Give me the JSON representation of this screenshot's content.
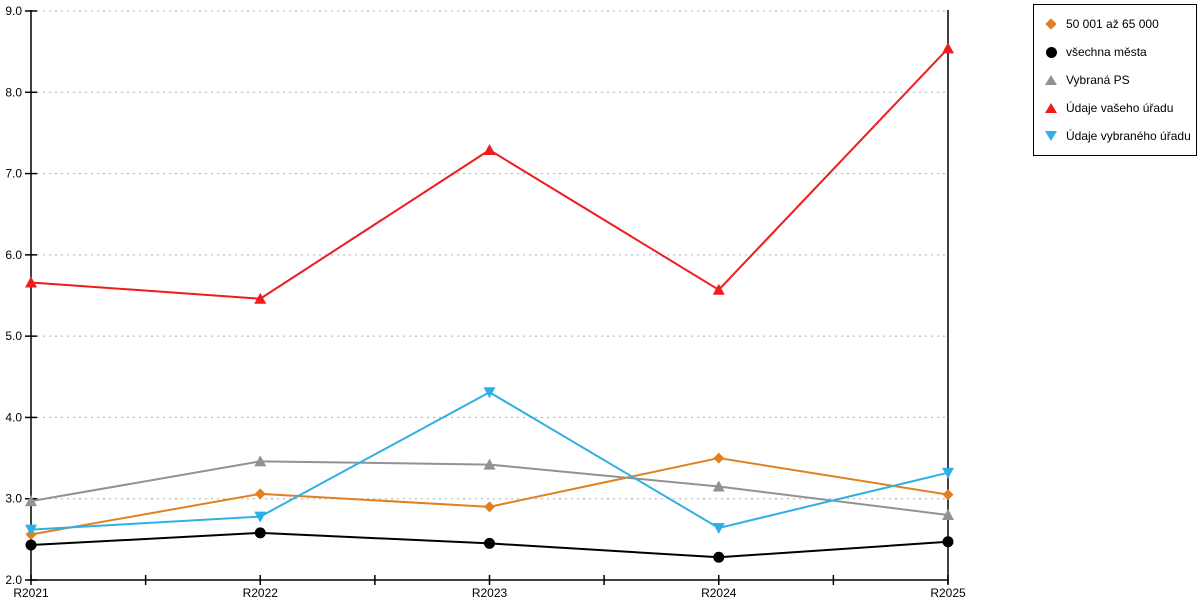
{
  "chart_data": {
    "type": "line",
    "title": "",
    "xlabel": "",
    "ylabel": "",
    "categories": [
      "R2021",
      "R2022",
      "R2023",
      "R2024",
      "R2025"
    ],
    "series": [
      {
        "name": "50 001 až 65 000",
        "color": "#E2801F",
        "marker": "diamond",
        "values": [
          2.56,
          3.06,
          2.9,
          3.5,
          3.05
        ]
      },
      {
        "name": "všechna města",
        "color": "#000000",
        "marker": "circle",
        "values": [
          2.43,
          2.58,
          2.45,
          2.28,
          2.47
        ]
      },
      {
        "name": "Vybraná PS",
        "color": "#929292",
        "marker": "triangle-up",
        "values": [
          2.97,
          3.46,
          3.42,
          3.15,
          2.8
        ]
      },
      {
        "name": "Údaje vašeho úřadu",
        "color": "#EE1C1C",
        "marker": "triangle-up",
        "values": [
          5.66,
          5.46,
          7.29,
          5.57,
          8.54
        ]
      },
      {
        "name": "Údaje vybraného úřadu",
        "color": "#2EB0E6",
        "marker": "triangle-down",
        "values": [
          2.62,
          2.78,
          4.31,
          2.64,
          3.32
        ]
      }
    ],
    "ylim": [
      2.0,
      9.0
    ],
    "ytick_step": 1.0,
    "ytick_labels": [
      "2.0",
      "3.0",
      "4.0",
      "5.0",
      "6.0",
      "7.0",
      "8.0",
      "9.0"
    ],
    "grid": "horizontal-dotted",
    "grid_color": "#ADADAD",
    "axis_color": "#000000",
    "legend_position": "top-right"
  }
}
